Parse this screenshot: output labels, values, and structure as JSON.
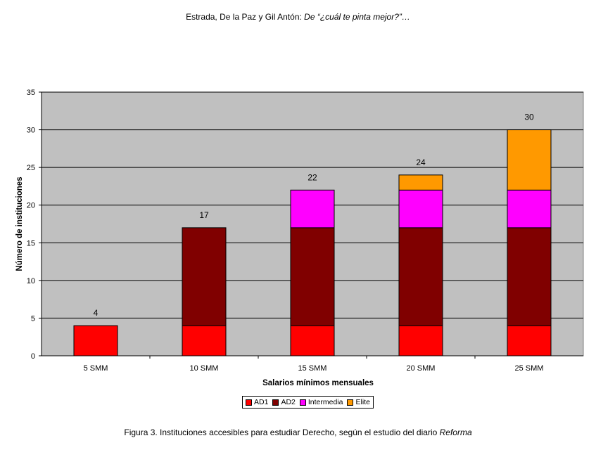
{
  "header": {
    "authors": "Estrada, De la Paz y Gil Antón: ",
    "work": "De “¿cuál te pinta mejor?”…"
  },
  "caption": {
    "text": "Figura 3. Instituciones accesibles para estudiar Derecho, según el estudio del diario ",
    "source": "Reforma"
  },
  "chart_data": {
    "type": "bar",
    "stacked": true,
    "categories": [
      "5 SMM",
      "10 SMM",
      "15 SMM",
      "20 SMM",
      "25 SMM"
    ],
    "series": [
      {
        "name": "AD1",
        "color": "#ff0000",
        "values": [
          4,
          4,
          4,
          4,
          4
        ]
      },
      {
        "name": "AD2",
        "color": "#800000",
        "values": [
          0,
          13,
          13,
          13,
          13
        ]
      },
      {
        "name": "Intermedia",
        "color": "#ff00ff",
        "values": [
          0,
          0,
          5,
          5,
          5
        ]
      },
      {
        "name": "Elite",
        "color": "#ff9900",
        "values": [
          0,
          0,
          0,
          2,
          8
        ]
      }
    ],
    "totals": [
      4,
      17,
      22,
      24,
      30
    ],
    "xlabel": "Salarios mínimos mensuales",
    "ylabel": "Número de instituciones",
    "ylim": [
      0,
      35
    ],
    "yticks": [
      0,
      5,
      10,
      15,
      20,
      25,
      30,
      35
    ],
    "grid": true,
    "plot_background": "#c0c0c0",
    "legend_position": "bottom"
  }
}
